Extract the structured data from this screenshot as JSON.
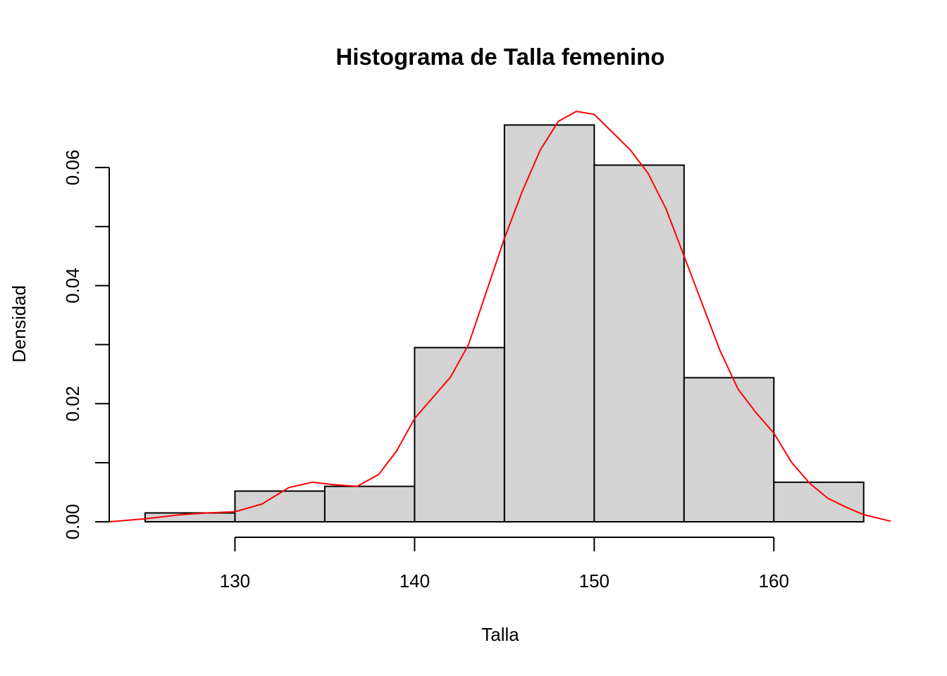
{
  "chart_data": {
    "type": "bar",
    "title": "Histograma de Talla femenino",
    "xlabel": "Talla",
    "ylabel": "Densidad",
    "bins": [
      {
        "x0": 125,
        "x1": 130,
        "density": 0.0015
      },
      {
        "x0": 130,
        "x1": 135,
        "density": 0.0052
      },
      {
        "x0": 135,
        "x1": 140,
        "density": 0.006
      },
      {
        "x0": 140,
        "x1": 145,
        "density": 0.0295
      },
      {
        "x0": 145,
        "x1": 150,
        "density": 0.0672
      },
      {
        "x0": 150,
        "x1": 155,
        "density": 0.0604
      },
      {
        "x0": 155,
        "x1": 160,
        "density": 0.0244
      },
      {
        "x0": 160,
        "x1": 165,
        "density": 0.0067
      }
    ],
    "bar_color": "#d3d3d3",
    "x_ticks": [
      130,
      140,
      150,
      160
    ],
    "x_tick_labels": [
      "130",
      "140",
      "150",
      "160"
    ],
    "y_ticks": [
      0,
      0.01,
      0.02,
      0.03,
      0.04,
      0.05,
      0.06
    ],
    "y_tick_labels": [
      "0.00",
      "0.02",
      "0.04",
      "0.06"
    ],
    "y_tick_label_values": [
      0,
      0.02,
      0.04,
      0.06
    ],
    "xlim": [
      123,
      166.5
    ],
    "ylim": [
      0,
      0.07
    ],
    "density_curve": {
      "color": "#ff0000",
      "points": [
        [
          123.0,
          0.0
        ],
        [
          125.0,
          0.0005
        ],
        [
          127.0,
          0.0012
        ],
        [
          128.5,
          0.0015
        ],
        [
          130.0,
          0.0017
        ],
        [
          131.5,
          0.003
        ],
        [
          133.0,
          0.0058
        ],
        [
          134.3,
          0.0067
        ],
        [
          135.5,
          0.0063
        ],
        [
          136.8,
          0.006
        ],
        [
          138.0,
          0.008
        ],
        [
          139.0,
          0.012
        ],
        [
          140.0,
          0.0175
        ],
        [
          141.0,
          0.021
        ],
        [
          142.0,
          0.0245
        ],
        [
          143.0,
          0.03
        ],
        [
          144.0,
          0.039
        ],
        [
          145.0,
          0.048
        ],
        [
          146.0,
          0.056
        ],
        [
          147.0,
          0.063
        ],
        [
          148.0,
          0.0678
        ],
        [
          149.0,
          0.0695
        ],
        [
          150.0,
          0.069
        ],
        [
          151.0,
          0.066
        ],
        [
          152.0,
          0.063
        ],
        [
          153.0,
          0.059
        ],
        [
          154.0,
          0.053
        ],
        [
          155.0,
          0.045
        ],
        [
          156.0,
          0.037
        ],
        [
          157.0,
          0.029
        ],
        [
          158.0,
          0.0225
        ],
        [
          159.0,
          0.0185
        ],
        [
          160.0,
          0.015
        ],
        [
          161.0,
          0.01
        ],
        [
          162.0,
          0.0065
        ],
        [
          163.0,
          0.004
        ],
        [
          164.0,
          0.0025
        ],
        [
          165.0,
          0.0012
        ],
        [
          166.5,
          0.0001
        ]
      ]
    }
  }
}
